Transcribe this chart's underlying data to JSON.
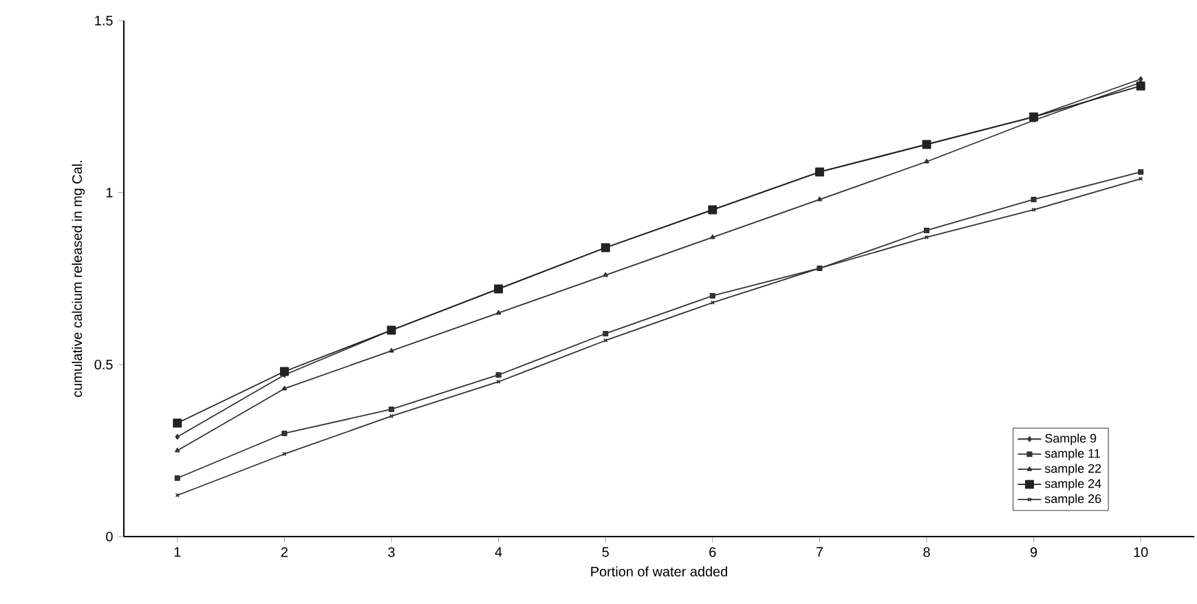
{
  "chart_data": {
    "type": "line",
    "xlabel": "Portion of water added",
    "ylabel": "cumulative calcium released in mg Cal.",
    "x": [
      1,
      2,
      3,
      4,
      5,
      6,
      7,
      8,
      9,
      10
    ],
    "series": [
      {
        "name": "Sample 9",
        "color": "#333333",
        "marker": "diamond",
        "values": [
          0.29,
          0.47,
          0.6,
          0.72,
          0.84,
          0.95,
          1.06,
          1.14,
          1.22,
          1.33
        ]
      },
      {
        "name": "sample 11",
        "color": "#333333",
        "marker": "square",
        "values": [
          0.17,
          0.3,
          0.37,
          0.47,
          0.59,
          0.7,
          0.78,
          0.89,
          0.98,
          1.06
        ]
      },
      {
        "name": "sample 22",
        "color": "#333333",
        "marker": "triangle",
        "values": [
          0.25,
          0.43,
          0.54,
          0.65,
          0.76,
          0.87,
          0.98,
          1.09,
          1.21,
          1.32
        ]
      },
      {
        "name": "sample 24",
        "color": "#222222",
        "marker": "square",
        "values": [
          0.33,
          0.48,
          0.6,
          0.72,
          0.84,
          0.95,
          1.06,
          1.14,
          1.22,
          1.31
        ]
      },
      {
        "name": "sample 26",
        "color": "#333333",
        "marker": "cross",
        "values": [
          0.12,
          0.24,
          0.35,
          0.45,
          0.57,
          0.68,
          0.78,
          0.87,
          0.95,
          1.04
        ]
      }
    ],
    "xlim": [
      0.5,
      10.5
    ],
    "ylim": [
      0,
      1.5
    ],
    "xticks": [
      1,
      2,
      3,
      4,
      5,
      6,
      7,
      8,
      9,
      10
    ],
    "yticks": [
      0,
      0.5,
      1,
      1.5
    ],
    "grid": false,
    "legend": "bottom right"
  }
}
